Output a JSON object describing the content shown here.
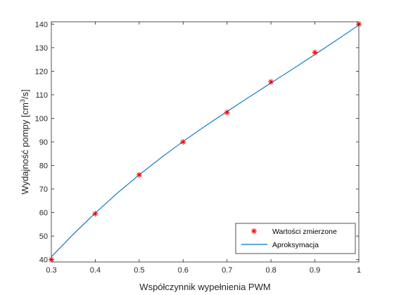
{
  "chart_data": {
    "type": "line",
    "xlabel": "Współczynnik wypełnienia PWM",
    "ylabel_prefix": "Wydajność pompy [cm",
    "ylabel_sup": "3",
    "ylabel_suffix": "/s]",
    "xlim": [
      0.3,
      1.0
    ],
    "ylim": [
      39,
      141
    ],
    "xticks": [
      0.3,
      0.4,
      0.5,
      0.6,
      0.7,
      0.8,
      0.9,
      1.0
    ],
    "xtick_labels": [
      "0.3",
      "0.4",
      "0.5",
      "0.6",
      "0.7",
      "0.8",
      "0.9",
      "1"
    ],
    "yticks": [
      40,
      50,
      60,
      70,
      80,
      90,
      100,
      110,
      120,
      130,
      140
    ],
    "ytick_labels": [
      "40",
      "50",
      "60",
      "70",
      "80",
      "90",
      "100",
      "110",
      "120",
      "130",
      "140"
    ],
    "grid": false,
    "legend_position": "bottom-right",
    "series": [
      {
        "name": "Wartości zmierzone",
        "kind": "scatter",
        "marker": "asterisk",
        "color": "#ff0000",
        "x": [
          0.3,
          0.4,
          0.5,
          0.6,
          0.7,
          0.8,
          0.9,
          1.0
        ],
        "y": [
          40.0,
          59.5,
          76.0,
          90.0,
          102.5,
          115.5,
          128.0,
          140.0
        ]
      },
      {
        "name": "Aproksymacja",
        "kind": "line",
        "color": "#0072bd",
        "x": [
          0.3,
          0.35,
          0.4,
          0.45,
          0.5,
          0.55,
          0.6,
          0.65,
          0.7,
          0.75,
          0.8,
          0.85,
          0.9,
          0.95,
          1.0
        ],
        "y": [
          41.2,
          50.8,
          59.8,
          68.2,
          76.0,
          83.3,
          90.2,
          96.7,
          102.9,
          109.0,
          115.0,
          121.0,
          127.1,
          133.3,
          139.6
        ]
      }
    ]
  }
}
